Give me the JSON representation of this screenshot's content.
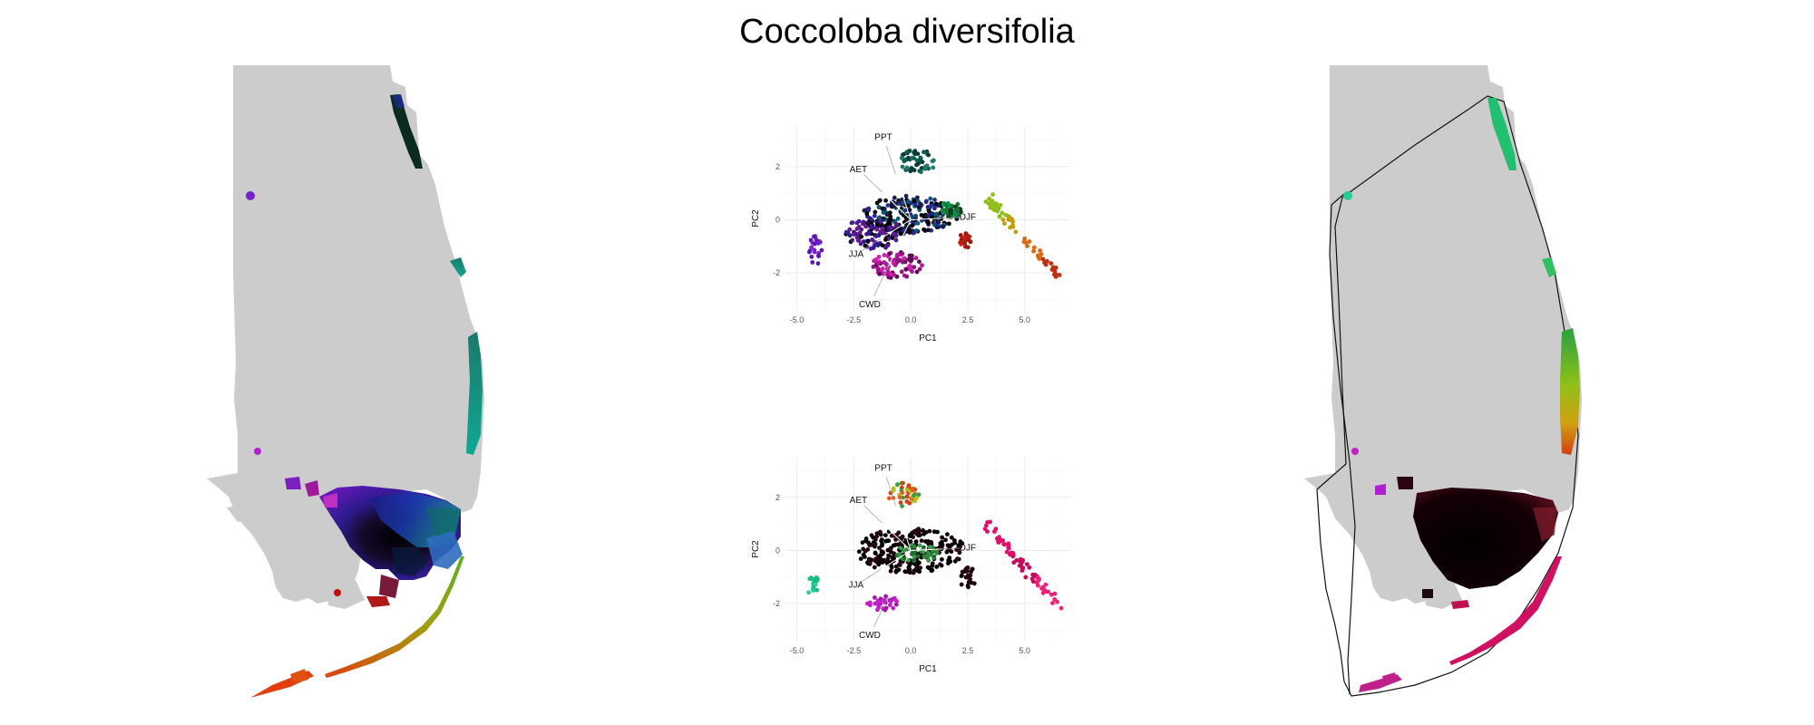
{
  "title": "Coccoloba diversifolia",
  "chart_data": [
    {
      "type": "scatter",
      "panel": "PCA biplot (top) - colour ramp",
      "title": "",
      "xlabel": "PC1",
      "ylabel": "PC2",
      "xlim": [
        -5.5,
        7
      ],
      "ylim": [
        -3.4,
        3.5
      ],
      "xticks": [
        "-5.0",
        "-2.5",
        "0.0",
        "2.5",
        "5.0"
      ],
      "xtick_values": [
        -5,
        -2.5,
        0,
        2.5,
        5
      ],
      "yticks": [
        "2",
        "0",
        "-2"
      ],
      "ytick_values": [
        2,
        0,
        -2
      ],
      "grid": true,
      "loadings": [
        {
          "label": "PPT",
          "x": -1.2,
          "y": 3.1
        },
        {
          "label": "AET",
          "x": -2.3,
          "y": 1.9
        },
        {
          "label": "DJF",
          "x": 2.5,
          "y": 0.1
        },
        {
          "label": "JJA",
          "x": -2.4,
          "y": -1.3
        },
        {
          "label": "CWD",
          "x": -1.8,
          "y": -3.2
        }
      ],
      "clusters": [
        {
          "cx": 0.3,
          "cy": 2.2,
          "rx": 0.8,
          "ry": 0.45,
          "n": 50,
          "colors": [
            "#1f7a6a",
            "#0e5c52",
            "#0a3a35"
          ]
        },
        {
          "cx": 0.0,
          "cy": 0.2,
          "rx": 2.1,
          "ry": 0.7,
          "n": 230,
          "colors": [
            "#000000",
            "#101020",
            "#1b1a55",
            "#26288f",
            "#0b5c6a",
            "#000000"
          ]
        },
        {
          "cx": -1.6,
          "cy": -0.5,
          "rx": 1.3,
          "ry": 0.6,
          "n": 120,
          "colors": [
            "#4a1a9a",
            "#2a1b8a",
            "#6a1a8a",
            "#000000"
          ]
        },
        {
          "cx": -0.6,
          "cy": -1.7,
          "rx": 1.1,
          "ry": 0.5,
          "n": 90,
          "colors": [
            "#b0189c",
            "#8a1780",
            "#d020b0",
            "#5a0f50"
          ]
        },
        {
          "cx": 2.4,
          "cy": -0.8,
          "rx": 0.3,
          "ry": 0.3,
          "n": 20,
          "colors": [
            "#c02010",
            "#a01808"
          ]
        },
        {
          "cx": 1.8,
          "cy": 0.4,
          "rx": 0.5,
          "ry": 0.3,
          "n": 30,
          "colors": [
            "#0c8f5a",
            "#157a30",
            "#0f4020"
          ]
        },
        {
          "cx": -4.2,
          "cy": -1.2,
          "rx": 0.3,
          "ry": 0.6,
          "n": 22,
          "colors": [
            "#7a1fd0",
            "#5a18b0"
          ]
        }
      ],
      "tails": [
        {
          "from": [
            3.2,
            1.0
          ],
          "to": [
            6.6,
            -2.2
          ],
          "n": 70,
          "colors": [
            "#8fbf1a",
            "#c0a010",
            "#d86a10",
            "#c03010"
          ]
        }
      ]
    },
    {
      "type": "scatter",
      "panel": "PCA biplot (bottom) - selected points",
      "title": "",
      "xlabel": "PC1",
      "ylabel": "PC2",
      "xlim": [
        -5.5,
        7
      ],
      "ylim": [
        -3.4,
        3.5
      ],
      "xticks": [
        "-5.0",
        "-2.5",
        "0.0",
        "2.5",
        "5.0"
      ],
      "xtick_values": [
        -5,
        -2.5,
        0,
        2.5,
        5
      ],
      "yticks": [
        "2",
        "0",
        "-2"
      ],
      "ytick_values": [
        2,
        0,
        -2
      ],
      "grid": true,
      "loadings": [
        {
          "label": "PPT",
          "x": -1.2,
          "y": 3.1
        },
        {
          "label": "AET",
          "x": -2.3,
          "y": 1.9
        },
        {
          "label": "DJF",
          "x": 2.5,
          "y": 0.1
        },
        {
          "label": "JJA",
          "x": -2.4,
          "y": -1.3
        },
        {
          "label": "CWD",
          "x": -1.8,
          "y": -3.2
        }
      ],
      "clusters": [
        {
          "cx": 0.0,
          "cy": 0.0,
          "rx": 2.4,
          "ry": 0.85,
          "n": 260,
          "colors": [
            "#000000",
            "#120008",
            "#2a0612",
            "#000000"
          ]
        },
        {
          "cx": 0.3,
          "cy": -0.1,
          "rx": 1.0,
          "ry": 0.3,
          "n": 45,
          "colors": [
            "#2e8b3a",
            "#3aa048",
            "#1f6a30"
          ]
        },
        {
          "cx": -0.3,
          "cy": 2.1,
          "rx": 0.7,
          "ry": 0.45,
          "n": 40,
          "colors": [
            "#d04010",
            "#e06020",
            "#b8c020",
            "#30a040"
          ]
        },
        {
          "cx": -1.2,
          "cy": -2.0,
          "rx": 0.7,
          "ry": 0.3,
          "n": 28,
          "colors": [
            "#c020c8",
            "#a018a8"
          ]
        },
        {
          "cx": 2.5,
          "cy": -1.0,
          "rx": 0.4,
          "ry": 0.4,
          "n": 22,
          "colors": [
            "#2a0612",
            "#180006"
          ]
        },
        {
          "cx": -4.3,
          "cy": -1.3,
          "rx": 0.25,
          "ry": 0.55,
          "n": 18,
          "colors": [
            "#20d090",
            "#18b880"
          ]
        }
      ],
      "tails": [
        {
          "from": [
            3.3,
            1.0
          ],
          "to": [
            6.6,
            -2.2
          ],
          "n": 70,
          "colors": [
            "#e0106a",
            "#c80a5a",
            "#f0207a"
          ]
        }
      ]
    }
  ]
}
